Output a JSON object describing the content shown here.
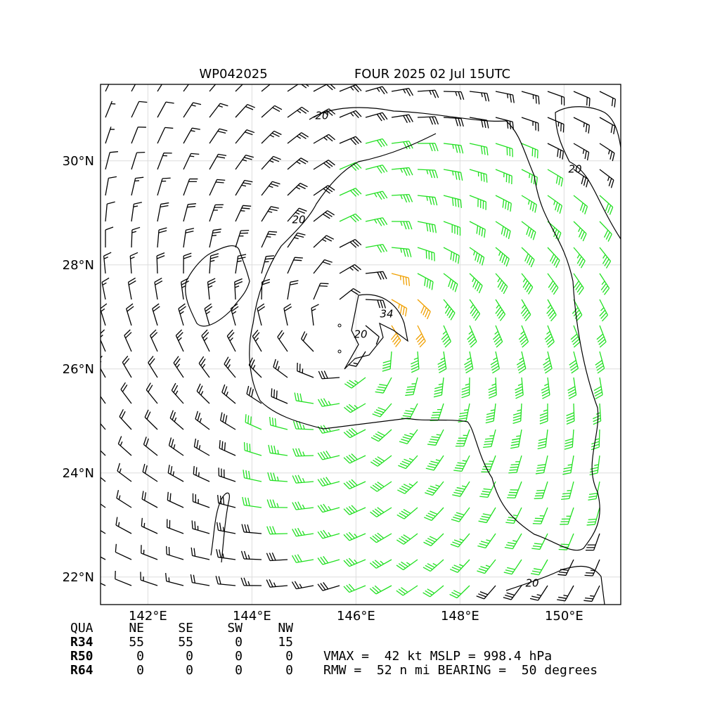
{
  "chart_data": {
    "type": "wind-barb-map",
    "title": "WP042025",
    "subtitle": "FOUR 2025 02 Jul 15UTC",
    "xlim": [
      141.09,
      151.09
    ],
    "ylim": [
      21.47,
      31.47
    ],
    "xticks": [
      {
        "value": 142,
        "label": "142°E"
      },
      {
        "value": 144,
        "label": "144°E"
      },
      {
        "value": 146,
        "label": "146°E"
      },
      {
        "value": 148,
        "label": "148°E"
      },
      {
        "value": 150,
        "label": "150°E"
      }
    ],
    "yticks": [
      {
        "value": 22,
        "label": "22°N"
      },
      {
        "value": 24,
        "label": "24°N"
      },
      {
        "value": 26,
        "label": "26°N"
      },
      {
        "value": 28,
        "label": "28°N"
      },
      {
        "value": 30,
        "label": "30°N"
      }
    ],
    "grid": true,
    "contour_labels": [
      20,
      34,
      20,
      20,
      20,
      20
    ]
  },
  "wind_radii": {
    "header": [
      "QUA",
      "NE",
      "SE",
      "SW",
      "NW"
    ],
    "rows": [
      {
        "label": "R34",
        "values": [
          55,
          55,
          0,
          15
        ]
      },
      {
        "label": "R50",
        "values": [
          0,
          0,
          0,
          0
        ]
      },
      {
        "label": "R64",
        "values": [
          0,
          0,
          0,
          0
        ]
      }
    ]
  },
  "summary": [
    "VMAX =  42 kt MSLP = 998.4 hPa",
    "RMW =  52 n mi BEARING =  50 degrees"
  ]
}
